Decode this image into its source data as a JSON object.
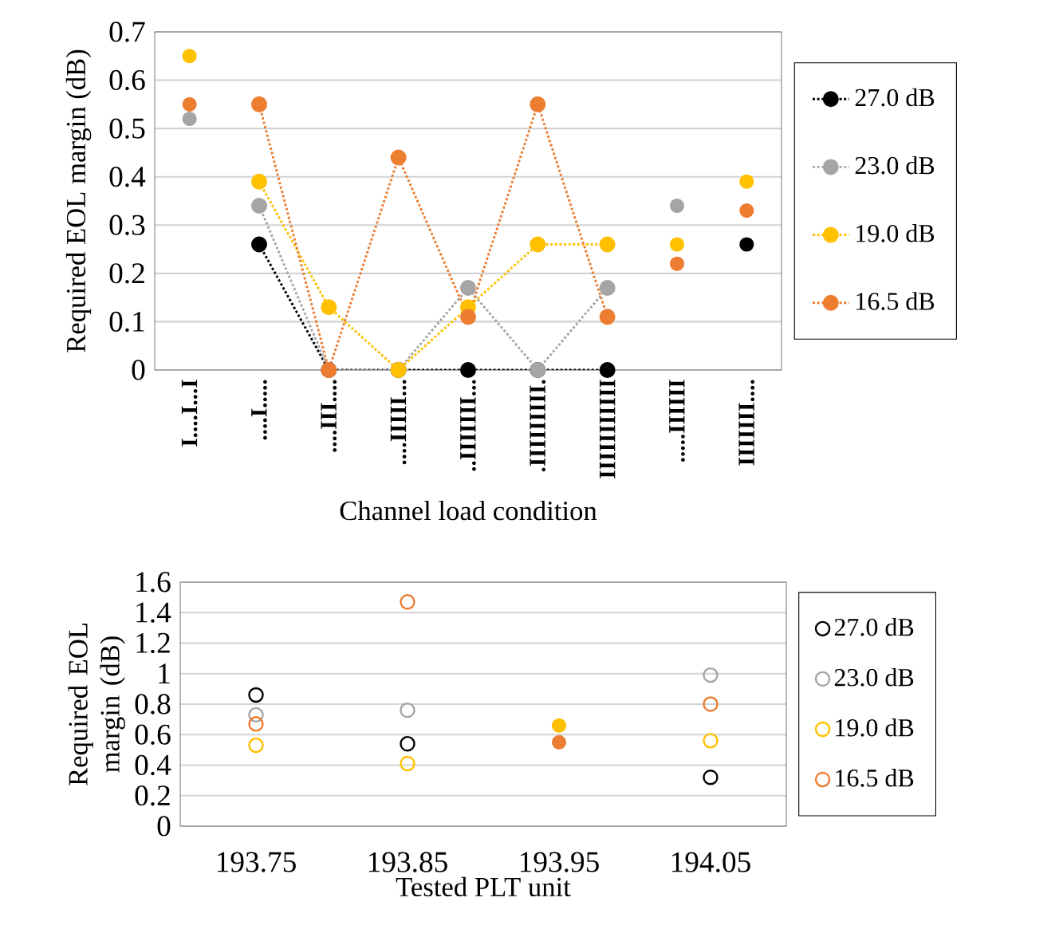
{
  "chart_data": [
    {
      "type": "line",
      "ylabel": "Required EOL margin (dB)",
      "xlabel": "Channel load condition",
      "categories": [
        "I....I...I",
        "....I.....",
        "....III....",
        "....IIIII...",
        "..IIIIIII...",
        ".IIIIIIIII.",
        "IIIIIIIIIII",
        ".....IIIIII",
        "IIIIIII...."
      ],
      "ylim": [
        0,
        0.7
      ],
      "yticks": [
        0,
        0.1,
        0.2,
        0.3,
        0.4,
        0.5,
        0.6,
        0.7
      ],
      "grid": "y",
      "legend": "right",
      "marker": "circle",
      "line_style": "dotted",
      "series": [
        {
          "name": "27.0 dB",
          "color": "#000000",
          "values": [
            null,
            0.26,
            0,
            0,
            0,
            0,
            0,
            null,
            null
          ]
        },
        {
          "name": "23.0 dB",
          "color": "#a5a5a5",
          "values": [
            null,
            0.34,
            0,
            0,
            0.17,
            0,
            0.17,
            null,
            null
          ]
        },
        {
          "name": "19.0 dB",
          "color": "#ffc000",
          "values": [
            null,
            0.39,
            0.13,
            0,
            0.13,
            0.26,
            0.26,
            null,
            null
          ]
        },
        {
          "name": "16.5 dB",
          "color": "#ed7d31",
          "values": [
            null,
            0.55,
            0,
            0.44,
            0.11,
            0.55,
            0.11,
            null,
            null
          ]
        },
        {
          "type": "scatter",
          "color": "#000000",
          "values": [
            null,
            null,
            null,
            null,
            null,
            null,
            null,
            null,
            0.26
          ]
        },
        {
          "type": "scatter",
          "color": "#a5a5a5",
          "values": [
            0.52,
            null,
            null,
            null,
            null,
            null,
            null,
            0.34,
            null
          ]
        },
        {
          "type": "scatter",
          "color": "#ffc000",
          "values": [
            0.65,
            null,
            null,
            null,
            null,
            null,
            null,
            0.26,
            0.39
          ]
        },
        {
          "type": "scatter",
          "color": "#ed7d31",
          "values": [
            0.55,
            null,
            null,
            null,
            null,
            null,
            null,
            0.22,
            0.33
          ]
        }
      ]
    },
    {
      "type": "scatter",
      "ylabel": "Required EOL margin (dB)",
      "xlabel": "Tested PLT unit",
      "categories": [
        "193.75",
        "193.85",
        "193.95",
        "194.05"
      ],
      "ylim": [
        0,
        1.6
      ],
      "yticks": [
        0,
        0.2,
        0.4,
        0.6,
        0.8,
        1,
        1.2,
        1.4,
        1.6
      ],
      "grid": "y",
      "legend": "right",
      "marker": "circle",
      "series": [
        {
          "name": "27.0 dB",
          "color": "#000000",
          "values": [
            0.86,
            0.54,
            null,
            0.32
          ]
        },
        {
          "name": "23.0 dB",
          "color": "#a5a5a5",
          "values": [
            0.73,
            0.76,
            null,
            0.99
          ]
        },
        {
          "name": "19.0 dB",
          "color": "#ffc000",
          "values": [
            0.53,
            0.41,
            null,
            0.56
          ]
        },
        {
          "name": "16.5 dB",
          "color": "#ed7d31",
          "values": [
            0.67,
            1.47,
            null,
            0.8
          ]
        },
        {
          "color": "#ffc000",
          "values": [
            null,
            null,
            0.66,
            null
          ]
        },
        {
          "color": "#ed7d31",
          "values": [
            null,
            null,
            0.55,
            null
          ]
        }
      ]
    }
  ]
}
